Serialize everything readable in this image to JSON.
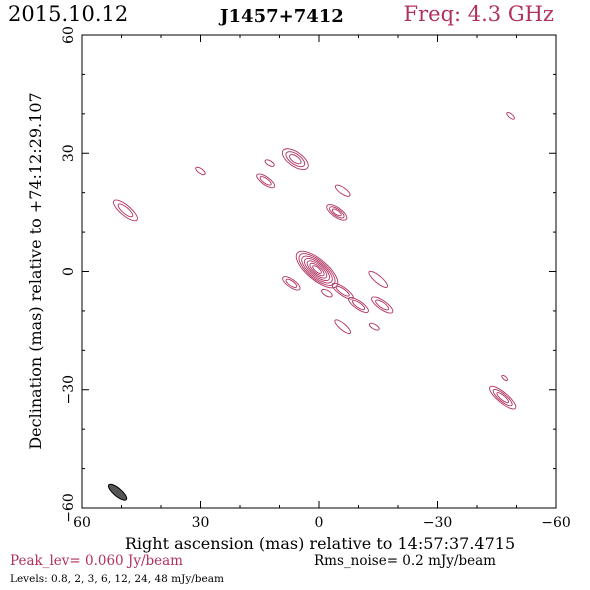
{
  "header": {
    "date": "2015.10.12",
    "source": "J1457+7412",
    "freq": "Freq: 4.3 GHz"
  },
  "footer": {
    "peak": "Peak_lev=  0.060 Jy/beam",
    "rms": "Rms_noise=   0.2 mJy/beam",
    "levels": "Levels: 0.8,   2,   3,   6,  12,  24,  48 mJy/beam"
  },
  "colors": {
    "contour": "#b03060",
    "beam": "#555555",
    "frame": "#000000",
    "freq_text": "#b03060"
  },
  "chart_data": {
    "type": "contour",
    "xlabel": "Right ascension (mas) relative to 14:57:37.4715",
    "ylabel": "Declination (mas) relative to +74:12:29.107",
    "xlim": [
      60,
      -60
    ],
    "ylim": [
      -60,
      60
    ],
    "xticks": [
      60,
      30,
      0,
      -30,
      -60
    ],
    "yticks": [
      60,
      30,
      0,
      -30,
      -60
    ],
    "xtick_labels": [
      "60",
      "30",
      "0",
      "−30",
      "−60"
    ],
    "ytick_labels": [
      "60",
      "30",
      "0",
      "−30",
      "−60"
    ],
    "contour_levels_mJy": [
      0.8,
      2,
      3,
      6,
      12,
      24,
      48
    ],
    "peak_Jy_per_beam": 0.06,
    "rms_mJy_per_beam": 0.2,
    "components": [
      {
        "x": 0.5,
        "y": 0.5,
        "a": 6.5,
        "b": 2.6,
        "pa": 40,
        "levels": 7
      },
      {
        "x": -6,
        "y": -5,
        "a": 3.2,
        "b": 1.0,
        "pa": 35,
        "levels": 2
      },
      {
        "x": -10,
        "y": -8.5,
        "a": 3.0,
        "b": 1.0,
        "pa": 35,
        "levels": 2
      },
      {
        "x": -15,
        "y": -2,
        "a": 3.0,
        "b": 0.9,
        "pa": 40,
        "levels": 1
      },
      {
        "x": -16,
        "y": -8.5,
        "a": 3.2,
        "b": 1.1,
        "pa": 35,
        "levels": 2
      },
      {
        "x": -6,
        "y": -14,
        "a": 2.5,
        "b": 0.8,
        "pa": 40,
        "levels": 1
      },
      {
        "x": -14,
        "y": -14,
        "a": 1.4,
        "b": 0.6,
        "pa": 30,
        "levels": 1
      },
      {
        "x": 7,
        "y": -3,
        "a": 2.6,
        "b": 1.0,
        "pa": 35,
        "levels": 2
      },
      {
        "x": -2,
        "y": -5.5,
        "a": 1.5,
        "b": 0.7,
        "pa": 30,
        "levels": 1
      },
      {
        "x": 6,
        "y": 28.5,
        "a": 3.8,
        "b": 1.8,
        "pa": 35,
        "levels": 3
      },
      {
        "x": 13.5,
        "y": 23,
        "a": 2.7,
        "b": 1.0,
        "pa": 35,
        "levels": 2
      },
      {
        "x": 12.5,
        "y": 27.5,
        "a": 1.3,
        "b": 0.6,
        "pa": 30,
        "levels": 1
      },
      {
        "x": -6,
        "y": 20.5,
        "a": 2.2,
        "b": 0.8,
        "pa": 35,
        "levels": 1
      },
      {
        "x": -4.5,
        "y": 15,
        "a": 3.0,
        "b": 1.2,
        "pa": 35,
        "levels": 3
      },
      {
        "x": 30,
        "y": 25.5,
        "a": 1.4,
        "b": 0.6,
        "pa": 35,
        "levels": 1
      },
      {
        "x": 49,
        "y": 15.5,
        "a": 3.8,
        "b": 1.3,
        "pa": 40,
        "levels": 2
      },
      {
        "x": -48.5,
        "y": 39.5,
        "a": 1.2,
        "b": 0.5,
        "pa": 40,
        "levels": 1
      },
      {
        "x": -46.5,
        "y": -32,
        "a": 4.2,
        "b": 1.3,
        "pa": 40,
        "levels": 3
      },
      {
        "x": -47,
        "y": -27,
        "a": 0.9,
        "b": 0.4,
        "pa": 40,
        "levels": 1
      }
    ],
    "beam": {
      "x": 51,
      "y": -56,
      "a": 2.9,
      "b": 1.0,
      "pa": 40
    }
  }
}
